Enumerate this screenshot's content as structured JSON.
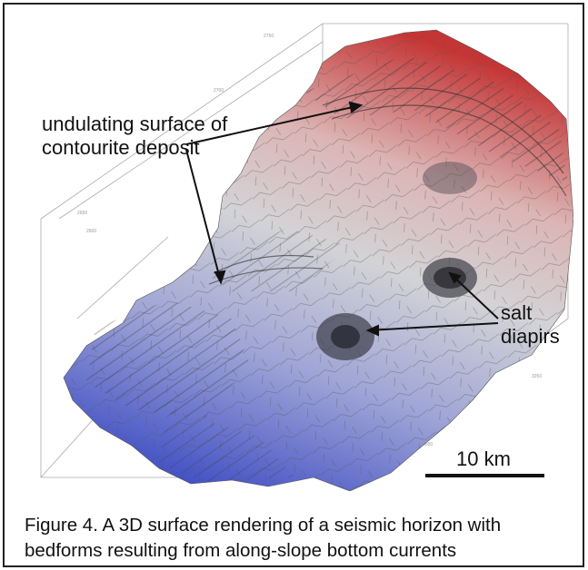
{
  "figure": {
    "annotations": {
      "contourite": "undulating surface of contourite deposit",
      "salt": "salt diapirs"
    },
    "scale_bar": "10 km",
    "caption": "Figure 4. A 3D surface rendering of a seismic horizon with bedforms resulting from along-slope bottom currents"
  },
  "colors": {
    "high": "#c03a3a",
    "mid": "#c9c9c9",
    "low": "#4b57c8",
    "outline": "#222222"
  }
}
